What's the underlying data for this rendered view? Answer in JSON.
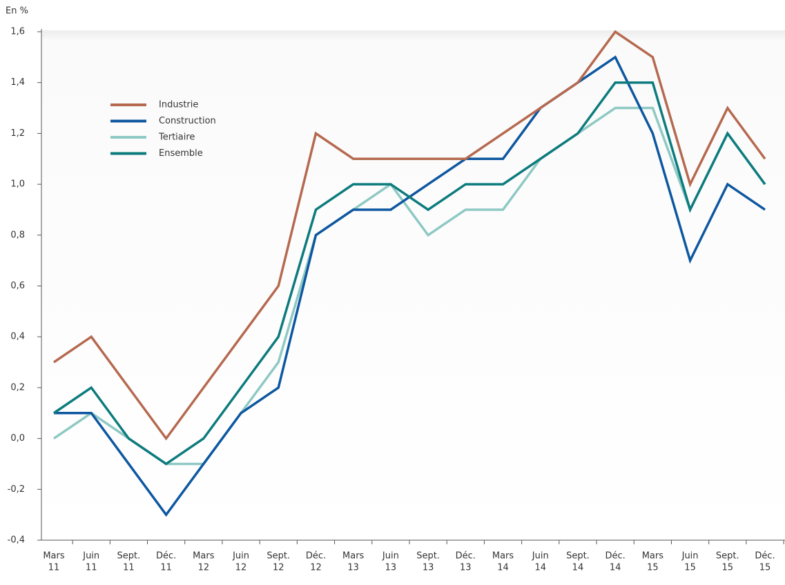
{
  "chart_data": {
    "type": "line",
    "y_label": "En %",
    "categories": [
      [
        "Mars",
        "11"
      ],
      [
        "Juin",
        "11"
      ],
      [
        "Sept.",
        "11"
      ],
      [
        "Déc.",
        "11"
      ],
      [
        "Mars",
        "12"
      ],
      [
        "Juin",
        "12"
      ],
      [
        "Sept.",
        "12"
      ],
      [
        "Déc.",
        "12"
      ],
      [
        "Mars",
        "13"
      ],
      [
        "Juin",
        "13"
      ],
      [
        "Sept.",
        "13"
      ],
      [
        "Déc.",
        "13"
      ],
      [
        "Mars",
        "14"
      ],
      [
        "Juin",
        "14"
      ],
      [
        "Sept.",
        "14"
      ],
      [
        "Déc.",
        "14"
      ],
      [
        "Mars",
        "15"
      ],
      [
        "Juin",
        "15"
      ],
      [
        "Sept.",
        "15"
      ],
      [
        "Déc.",
        "15"
      ]
    ],
    "series": [
      {
        "name": "Industrie",
        "color": "#b5694f",
        "values": [
          0.3,
          0.4,
          0.2,
          0.0,
          0.2,
          0.4,
          0.6,
          1.2,
          1.1,
          1.1,
          1.1,
          1.1,
          1.2,
          1.3,
          1.4,
          1.6,
          1.5,
          1.0,
          1.3,
          1.1
        ]
      },
      {
        "name": "Construction",
        "color": "#0d57a0",
        "values": [
          0.1,
          0.1,
          -0.1,
          -0.3,
          -0.1,
          0.1,
          0.2,
          0.8,
          0.9,
          0.9,
          1.0,
          1.1,
          1.1,
          1.3,
          1.4,
          1.5,
          1.2,
          0.7,
          1.0,
          0.9
        ]
      },
      {
        "name": "Tertiaire",
        "color": "#8ec9c4",
        "values": [
          0.0,
          0.1,
          0.0,
          -0.1,
          -0.1,
          0.1,
          0.3,
          0.8,
          0.9,
          1.0,
          0.8,
          0.9,
          0.9,
          1.1,
          1.2,
          1.3,
          1.3,
          0.9,
          1.2,
          1.0
        ]
      },
      {
        "name": "Ensemble",
        "color": "#0d7b7d",
        "values": [
          0.1,
          0.2,
          0.0,
          -0.1,
          0.0,
          0.2,
          0.4,
          0.9,
          1.0,
          1.0,
          0.9,
          1.0,
          1.0,
          1.1,
          1.2,
          1.4,
          1.4,
          0.9,
          1.2,
          1.0
        ]
      }
    ],
    "ylim": [
      -0.4,
      1.6
    ],
    "yticks": [
      {
        "value": -0.4,
        "label": "-0,4"
      },
      {
        "value": -0.2,
        "label": "-0,2"
      },
      {
        "value": 0,
        "label": "0,0"
      },
      {
        "value": 0.2,
        "label": "0,2"
      },
      {
        "value": 0.4,
        "label": "0,4"
      },
      {
        "value": 0.6,
        "label": "0,6"
      },
      {
        "value": 0.8,
        "label": "0,8"
      },
      {
        "value": 1.0,
        "label": "1,0"
      },
      {
        "value": 1.2,
        "label": "1,2"
      },
      {
        "value": 1.4,
        "label": "1,4"
      },
      {
        "value": 1.6,
        "label": "1,6"
      }
    ]
  }
}
